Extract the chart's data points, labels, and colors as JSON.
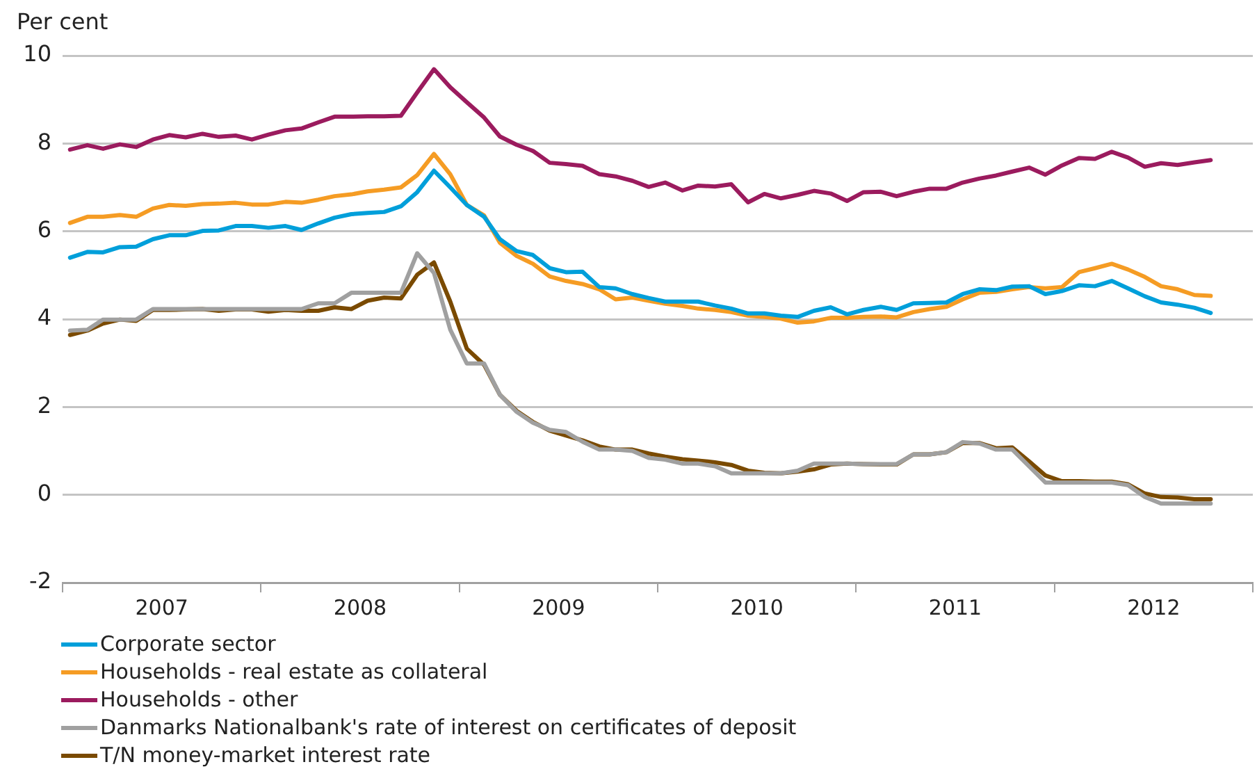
{
  "chart_data": {
    "type": "line",
    "ylabel": "Per cent",
    "x": [
      "2007-01-15",
      "2007-02-15",
      "2007-03-15",
      "2007-04-15",
      "2007-05-15",
      "2007-06-15",
      "2007-07-15",
      "2007-08-15",
      "2007-09-15",
      "2007-10-15",
      "2007-11-15",
      "2007-12-15",
      "2008-01-15",
      "2008-02-15",
      "2008-03-15",
      "2008-04-15",
      "2008-05-15",
      "2008-06-15",
      "2008-07-15",
      "2008-08-15",
      "2008-09-15",
      "2008-10-15",
      "2008-11-15",
      "2008-12-15",
      "2009-01-15",
      "2009-02-15",
      "2009-03-15",
      "2009-04-15",
      "2009-05-15",
      "2009-06-15",
      "2009-07-15",
      "2009-08-15",
      "2009-09-15",
      "2009-10-15",
      "2009-11-15",
      "2009-12-15",
      "2010-01-15",
      "2010-02-15",
      "2010-03-15",
      "2010-04-15",
      "2010-05-15",
      "2010-06-15",
      "2010-07-15",
      "2010-08-15",
      "2010-09-15",
      "2010-10-15",
      "2010-11-15",
      "2010-12-15",
      "2011-01-15",
      "2011-02-15",
      "2011-03-15",
      "2011-04-15",
      "2011-05-15",
      "2011-06-15",
      "2011-07-15",
      "2011-08-15",
      "2011-09-15",
      "2011-10-15",
      "2011-11-15",
      "2011-12-15",
      "2012-01-15",
      "2012-02-15",
      "2012-03-15",
      "2012-04-15",
      "2012-05-15",
      "2012-06-15",
      "2012-07-15",
      "2012-08-15",
      "2012-09-15",
      "2012-10-15"
    ],
    "series": [
      {
        "name": "Corporate sector",
        "color": "#009fda",
        "values": [
          5.4,
          5.53,
          5.52,
          5.64,
          5.65,
          5.82,
          5.91,
          5.91,
          6.01,
          6.02,
          6.12,
          6.12,
          6.08,
          6.12,
          6.03,
          6.18,
          6.31,
          6.39,
          6.42,
          6.44,
          6.57,
          6.89,
          7.38,
          7.0,
          6.6,
          6.33,
          5.82,
          5.55,
          5.46,
          5.16,
          5.07,
          5.08,
          4.73,
          4.7,
          4.57,
          4.48,
          4.4,
          4.4,
          4.4,
          4.31,
          4.24,
          4.13,
          4.13,
          4.08,
          4.05,
          4.19,
          4.27,
          4.11,
          4.21,
          4.28,
          4.21,
          4.36,
          4.37,
          4.38,
          4.57,
          4.68,
          4.66,
          4.74,
          4.75,
          4.57,
          4.64,
          4.77,
          4.75,
          4.87,
          4.7,
          4.52,
          4.38,
          4.33,
          4.26,
          4.14
        ]
      },
      {
        "name": "Households - real estate as collateral",
        "color": "#f59c24",
        "values": [
          6.19,
          6.33,
          6.33,
          6.37,
          6.33,
          6.52,
          6.6,
          6.58,
          6.62,
          6.63,
          6.65,
          6.61,
          6.61,
          6.67,
          6.65,
          6.72,
          6.8,
          6.84,
          6.91,
          6.95,
          7.0,
          7.28,
          7.76,
          7.3,
          6.6,
          6.36,
          5.74,
          5.44,
          5.26,
          4.97,
          4.87,
          4.8,
          4.68,
          4.45,
          4.49,
          4.42,
          4.35,
          4.3,
          4.24,
          4.21,
          4.16,
          4.08,
          4.05,
          4.01,
          3.92,
          3.95,
          4.03,
          4.03,
          4.05,
          4.06,
          4.04,
          4.16,
          4.23,
          4.28,
          4.45,
          4.6,
          4.62,
          4.68,
          4.73,
          4.7,
          4.73,
          5.07,
          5.16,
          5.26,
          5.13,
          4.96,
          4.75,
          4.68,
          4.55,
          4.53
        ]
      },
      {
        "name": "Households - other",
        "color": "#9b1b5e",
        "values": [
          7.86,
          7.96,
          7.88,
          7.98,
          7.92,
          8.09,
          8.19,
          8.14,
          8.22,
          8.15,
          8.18,
          8.09,
          8.2,
          8.3,
          8.34,
          8.48,
          8.61,
          8.61,
          8.62,
          8.62,
          8.63,
          9.16,
          9.69,
          9.28,
          8.94,
          8.59,
          8.16,
          7.97,
          7.83,
          7.56,
          7.53,
          7.49,
          7.3,
          7.25,
          7.15,
          7.01,
          7.11,
          6.93,
          7.04,
          7.02,
          7.07,
          6.66,
          6.85,
          6.75,
          6.83,
          6.92,
          6.86,
          6.69,
          6.89,
          6.9,
          6.8,
          6.9,
          6.97,
          6.97,
          7.11,
          7.2,
          7.27,
          7.36,
          7.45,
          7.29,
          7.5,
          7.67,
          7.65,
          7.81,
          7.68,
          7.47,
          7.55,
          7.51,
          7.57,
          7.62
        ]
      },
      {
        "name": "Danmarks Nationalbank's rate of interest on certificates of deposit",
        "color": "#a0a0a0",
        "values": [
          3.74,
          3.76,
          3.99,
          3.99,
          3.99,
          4.23,
          4.23,
          4.23,
          4.23,
          4.23,
          4.23,
          4.23,
          4.23,
          4.23,
          4.23,
          4.36,
          4.36,
          4.6,
          4.6,
          4.6,
          4.6,
          5.5,
          5.05,
          3.76,
          2.99,
          2.99,
          2.28,
          1.89,
          1.64,
          1.48,
          1.43,
          1.21,
          1.03,
          1.03,
          1.0,
          0.84,
          0.8,
          0.71,
          0.71,
          0.65,
          0.49,
          0.49,
          0.49,
          0.49,
          0.55,
          0.71,
          0.71,
          0.71,
          0.7,
          0.7,
          0.7,
          0.92,
          0.92,
          0.97,
          1.2,
          1.17,
          1.03,
          1.03,
          0.65,
          0.28,
          0.28,
          0.28,
          0.28,
          0.28,
          0.22,
          -0.05,
          -0.2,
          -0.2,
          -0.2,
          -0.2
        ]
      },
      {
        "name": "T/N money-market interest rate",
        "color": "#7a4a00",
        "values": [
          3.64,
          3.74,
          3.9,
          3.99,
          3.96,
          4.21,
          4.21,
          4.22,
          4.23,
          4.19,
          4.22,
          4.22,
          4.17,
          4.21,
          4.19,
          4.19,
          4.27,
          4.23,
          4.42,
          4.49,
          4.47,
          5.01,
          5.29,
          4.4,
          3.33,
          2.96,
          2.28,
          1.91,
          1.66,
          1.46,
          1.35,
          1.24,
          1.1,
          1.03,
          1.03,
          0.94,
          0.87,
          0.81,
          0.78,
          0.74,
          0.68,
          0.55,
          0.5,
          0.49,
          0.53,
          0.58,
          0.69,
          0.71,
          0.7,
          0.69,
          0.69,
          0.92,
          0.92,
          0.97,
          1.18,
          1.18,
          1.06,
          1.08,
          0.76,
          0.44,
          0.31,
          0.31,
          0.3,
          0.3,
          0.24,
          0.03,
          -0.05,
          -0.06,
          -0.1,
          -0.1
        ]
      }
    ],
    "xlim": [
      "2007-01-01",
      "2013-01-01"
    ],
    "xticks": [
      {
        "value": "2007-01-01",
        "label": null
      },
      {
        "value": "2007-07-01",
        "label": "2007"
      },
      {
        "value": "2008-01-01",
        "label": null
      },
      {
        "value": "2008-07-01",
        "label": "2008"
      },
      {
        "value": "2009-01-01",
        "label": null
      },
      {
        "value": "2009-07-01",
        "label": "2009"
      },
      {
        "value": "2010-01-01",
        "label": null
      },
      {
        "value": "2010-07-01",
        "label": "2010"
      },
      {
        "value": "2011-01-01",
        "label": null
      },
      {
        "value": "2011-07-01",
        "label": "2011"
      },
      {
        "value": "2012-01-01",
        "label": null
      },
      {
        "value": "2012-07-01",
        "label": "2012"
      },
      {
        "value": "2013-01-01",
        "label": null
      }
    ],
    "ylim": [
      -2,
      10
    ],
    "yticks": [
      -2,
      0,
      2,
      4,
      6,
      8,
      10
    ],
    "grid": "y",
    "legend": "bottom left",
    "marker": "none",
    "line_style": "solid"
  }
}
